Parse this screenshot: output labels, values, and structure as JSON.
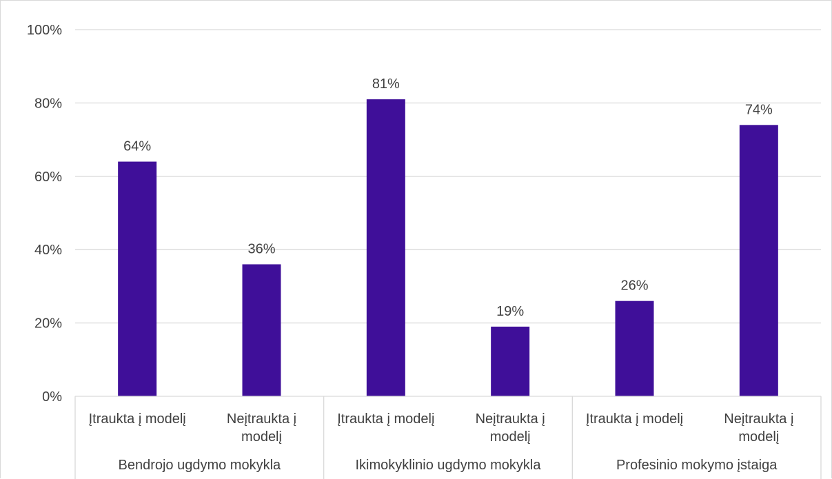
{
  "chart_data": {
    "type": "bar",
    "groups": [
      {
        "name": "Bendrojo ugdymo mokykla",
        "categories": [
          [
            "Įtraukta į modelį"
          ],
          [
            "Neįtraukta į",
            "modelį"
          ]
        ],
        "values": [
          64,
          36
        ]
      },
      {
        "name": "Ikimokyklinio ugdymo mokykla",
        "categories": [
          [
            "Įtraukta į modelį"
          ],
          [
            "Neįtraukta į",
            "modelį"
          ]
        ],
        "values": [
          81,
          19
        ]
      },
      {
        "name": "Profesinio mokymo įstaiga",
        "categories": [
          [
            "Įtraukta į modelį"
          ],
          [
            "Neįtraukta į",
            "modelį"
          ]
        ],
        "values": [
          26,
          74
        ]
      }
    ],
    "value_suffix": "%",
    "ylim": [
      0,
      100
    ],
    "yticks": [
      0,
      20,
      40,
      60,
      80,
      100
    ],
    "ytick_labels": [
      "0%",
      "20%",
      "40%",
      "60%",
      "80%",
      "100%"
    ],
    "grid": true,
    "legend": "none",
    "bar_color": "#3f0f99",
    "grid_color": "#d9d9d9"
  }
}
